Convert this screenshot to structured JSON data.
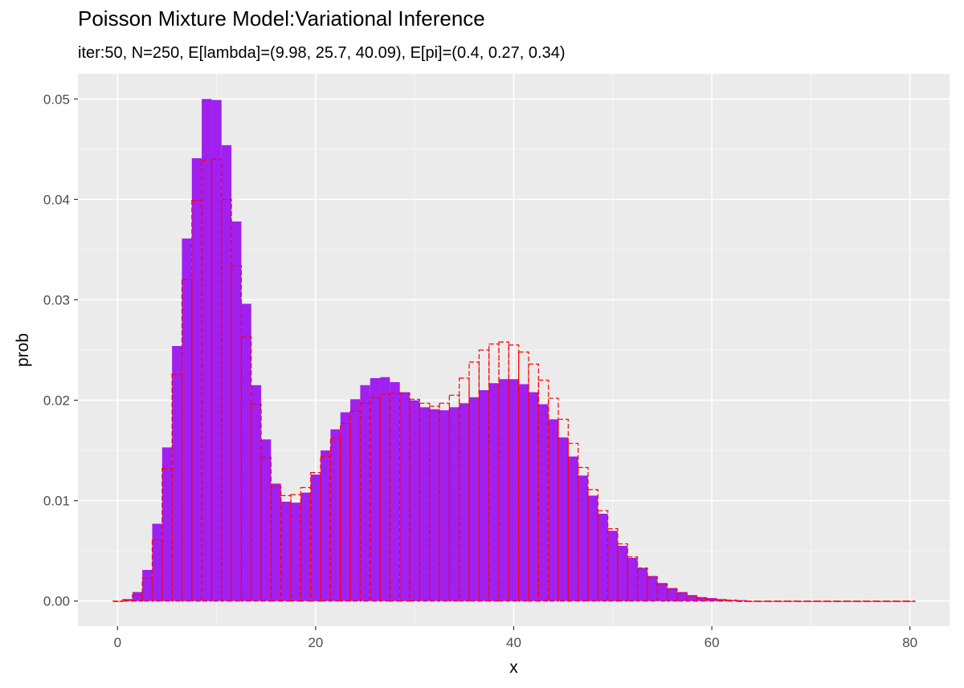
{
  "title": "Poisson Mixture Model:Variational Inference",
  "subtitle": "iter:50, N=250, E[lambda]=(9.98, 25.7, 40.09), E[pi]=(0.4, 0.27, 0.34)",
  "colors": {
    "panel": "#ebebeb",
    "grid_major": "#ffffff",
    "grid_minor": "#f5f5f5",
    "bar_fill": "#a020f0",
    "true_outline": "#ff0000"
  },
  "chart_data": {
    "type": "bar",
    "title": "Poisson Mixture Model:Variational Inference",
    "subtitle": "iter:50, N=250, E[lambda]=(9.98, 25.7, 40.09), E[pi]=(0.4, 0.27, 0.34)",
    "xlabel": "x",
    "ylabel": "prob",
    "xlim": [
      -4,
      84
    ],
    "ylim": [
      -0.0025,
      0.0525
    ],
    "x_ticks": [
      0,
      20,
      40,
      60,
      80
    ],
    "x_tick_labels": [
      "0",
      "20",
      "40",
      "60",
      "80"
    ],
    "y_ticks": [
      0,
      0.01,
      0.02,
      0.03,
      0.04,
      0.05
    ],
    "y_tick_labels": [
      "0.00",
      "0.01",
      "0.02",
      "0.03",
      "0.04",
      "0.05"
    ],
    "grid": true,
    "x": [
      0,
      1,
      2,
      3,
      4,
      5,
      6,
      7,
      8,
      9,
      10,
      11,
      12,
      13,
      14,
      15,
      16,
      17,
      18,
      19,
      20,
      21,
      22,
      23,
      24,
      25,
      26,
      27,
      28,
      29,
      30,
      31,
      32,
      33,
      34,
      35,
      36,
      37,
      38,
      39,
      40,
      41,
      42,
      43,
      44,
      45,
      46,
      47,
      48,
      49,
      50,
      51,
      52,
      53,
      54,
      55,
      56,
      57,
      58,
      59,
      60,
      61,
      62,
      63,
      64,
      65,
      66,
      67,
      68,
      69,
      70,
      71,
      72,
      73,
      74,
      75,
      76,
      77,
      78,
      79,
      80
    ],
    "series": [
      {
        "style": "filled",
        "values": [
          0.0,
          0.0002,
          0.0009,
          0.0031,
          0.0077,
          0.0153,
          0.0254,
          0.0361,
          0.0441,
          0.05,
          0.0499,
          0.0454,
          0.0378,
          0.0296,
          0.0215,
          0.0161,
          0.0117,
          0.0099,
          0.0098,
          0.0108,
          0.0126,
          0.015,
          0.0171,
          0.0188,
          0.0201,
          0.0215,
          0.0222,
          0.0223,
          0.0218,
          0.0208,
          0.02,
          0.0193,
          0.0191,
          0.019,
          0.0193,
          0.0197,
          0.0203,
          0.021,
          0.0217,
          0.0221,
          0.0221,
          0.0216,
          0.0208,
          0.0196,
          0.0181,
          0.0163,
          0.0144,
          0.0125,
          0.0105,
          0.0087,
          0.007,
          0.0055,
          0.0043,
          0.0033,
          0.0025,
          0.0018,
          0.0013,
          0.0009,
          0.0006,
          0.0004,
          0.0003,
          0.0002,
          0.0001,
          0.0001,
          0.0,
          0,
          0,
          0,
          0,
          0,
          0,
          0,
          0,
          0,
          0,
          0,
          0,
          0,
          0,
          0,
          0
        ]
      },
      {
        "style": "dashed-outline",
        "values": [
          0.0,
          0.0001,
          0.0006,
          0.0023,
          0.0061,
          0.0132,
          0.0226,
          0.032,
          0.0399,
          0.0439,
          0.044,
          0.04,
          0.0334,
          0.0263,
          0.0196,
          0.0143,
          0.0114,
          0.0105,
          0.0106,
          0.0113,
          0.0128,
          0.0144,
          0.0162,
          0.0177,
          0.0189,
          0.0197,
          0.0203,
          0.0206,
          0.0207,
          0.0207,
          0.0201,
          0.0197,
          0.0194,
          0.0197,
          0.0205,
          0.0222,
          0.0238,
          0.025,
          0.0256,
          0.0258,
          0.0255,
          0.0248,
          0.0236,
          0.022,
          0.0202,
          0.0181,
          0.0157,
          0.0133,
          0.0111,
          0.009,
          0.0072,
          0.0057,
          0.0044,
          0.0033,
          0.0024,
          0.0017,
          0.0012,
          0.0008,
          0.0005,
          0.0003,
          0.0002,
          0.0001,
          0.0001,
          0,
          0,
          0,
          0,
          0,
          0,
          0,
          0,
          0,
          0,
          0,
          0,
          0,
          0,
          0,
          0,
          0,
          0
        ]
      }
    ]
  }
}
